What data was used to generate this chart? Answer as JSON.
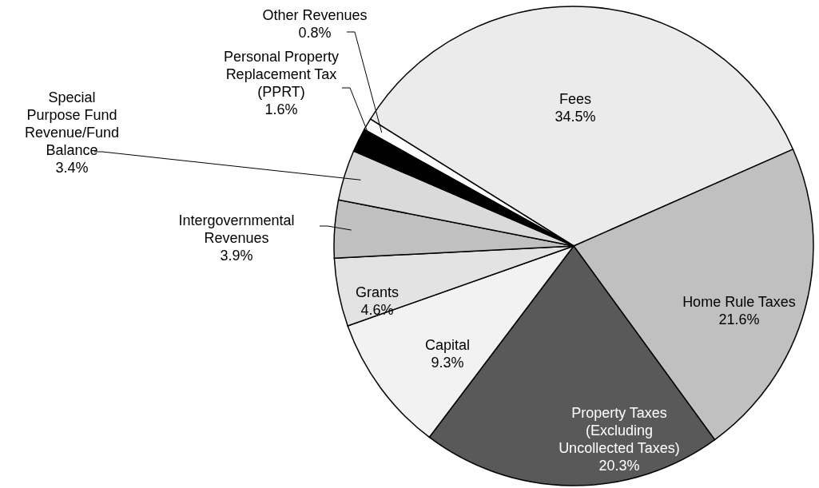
{
  "chart_data": {
    "type": "pie",
    "categories": [
      "Fees",
      "Home Rule Taxes",
      "Property Taxes (Excluding Uncollected Taxes)",
      "Capital",
      "Grants",
      "Intergovernmental Revenues",
      "Special Purpose Fund Revenue/Fund Balance",
      "Personal Property Replacement Tax (PPRT)",
      "Other Revenues"
    ],
    "values": [
      34.5,
      21.6,
      20.3,
      9.3,
      4.6,
      3.9,
      3.4,
      1.6,
      0.8
    ],
    "colors": [
      "#ebebeb",
      "#c0c0c0",
      "#595959",
      "#f2f2f2",
      "#e3e3e3",
      "#c0c0c0",
      "#dadada",
      "#000000",
      "#ffffff"
    ],
    "value_labels": [
      "34.5%",
      "21.6%",
      "20.3%",
      "9.3%",
      "4.6%",
      "3.9%",
      "3.4%",
      "1.6%",
      "0.8%"
    ]
  }
}
